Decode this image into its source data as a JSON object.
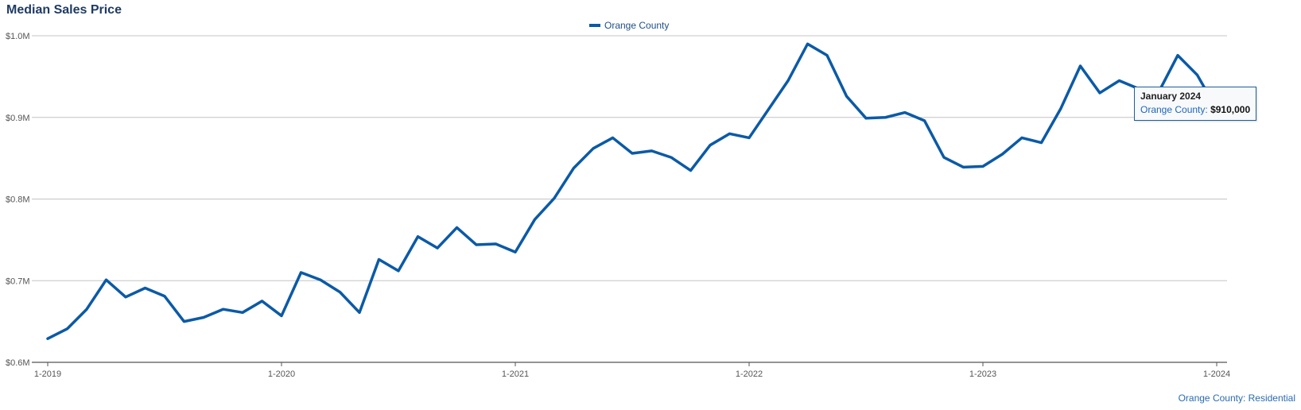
{
  "chart_data": {
    "type": "line",
    "title": "Median Sales Price",
    "series": [
      {
        "name": "Orange County",
        "color": "#0b5aa6",
        "values": [
          629000,
          641000,
          665000,
          701000,
          680000,
          691000,
          681000,
          650000,
          655000,
          665000,
          661000,
          675000,
          657000,
          710000,
          701000,
          686000,
          661000,
          726000,
          712000,
          754000,
          740000,
          765000,
          744000,
          745000,
          735000,
          775000,
          801000,
          838000,
          862000,
          875000,
          856000,
          859000,
          851000,
          835000,
          866000,
          880000,
          875000,
          910000,
          945000,
          990000,
          976000,
          926000,
          899000,
          900000,
          906000,
          896000,
          851000,
          839000,
          840000,
          855000,
          875000,
          869000,
          911000,
          963000,
          930000,
          945000,
          935000,
          930000,
          976000,
          952000,
          910000
        ]
      }
    ],
    "x_start": "2019-01",
    "x_end": "2024-01",
    "x_ticks": [
      "1-2019",
      "1-2020",
      "1-2021",
      "1-2022",
      "1-2023",
      "1-2024"
    ],
    "y_ticks": [
      "$0.6M",
      "$0.7M",
      "$0.8M",
      "$0.9M",
      "$1.0M"
    ],
    "ylim": [
      600000,
      1000000
    ],
    "grid": true,
    "legend_position": "top-center",
    "tooltip": {
      "date": "January 2024",
      "series": "Orange County:",
      "value": "$910,000"
    },
    "footer": "Orange County: Residential"
  }
}
